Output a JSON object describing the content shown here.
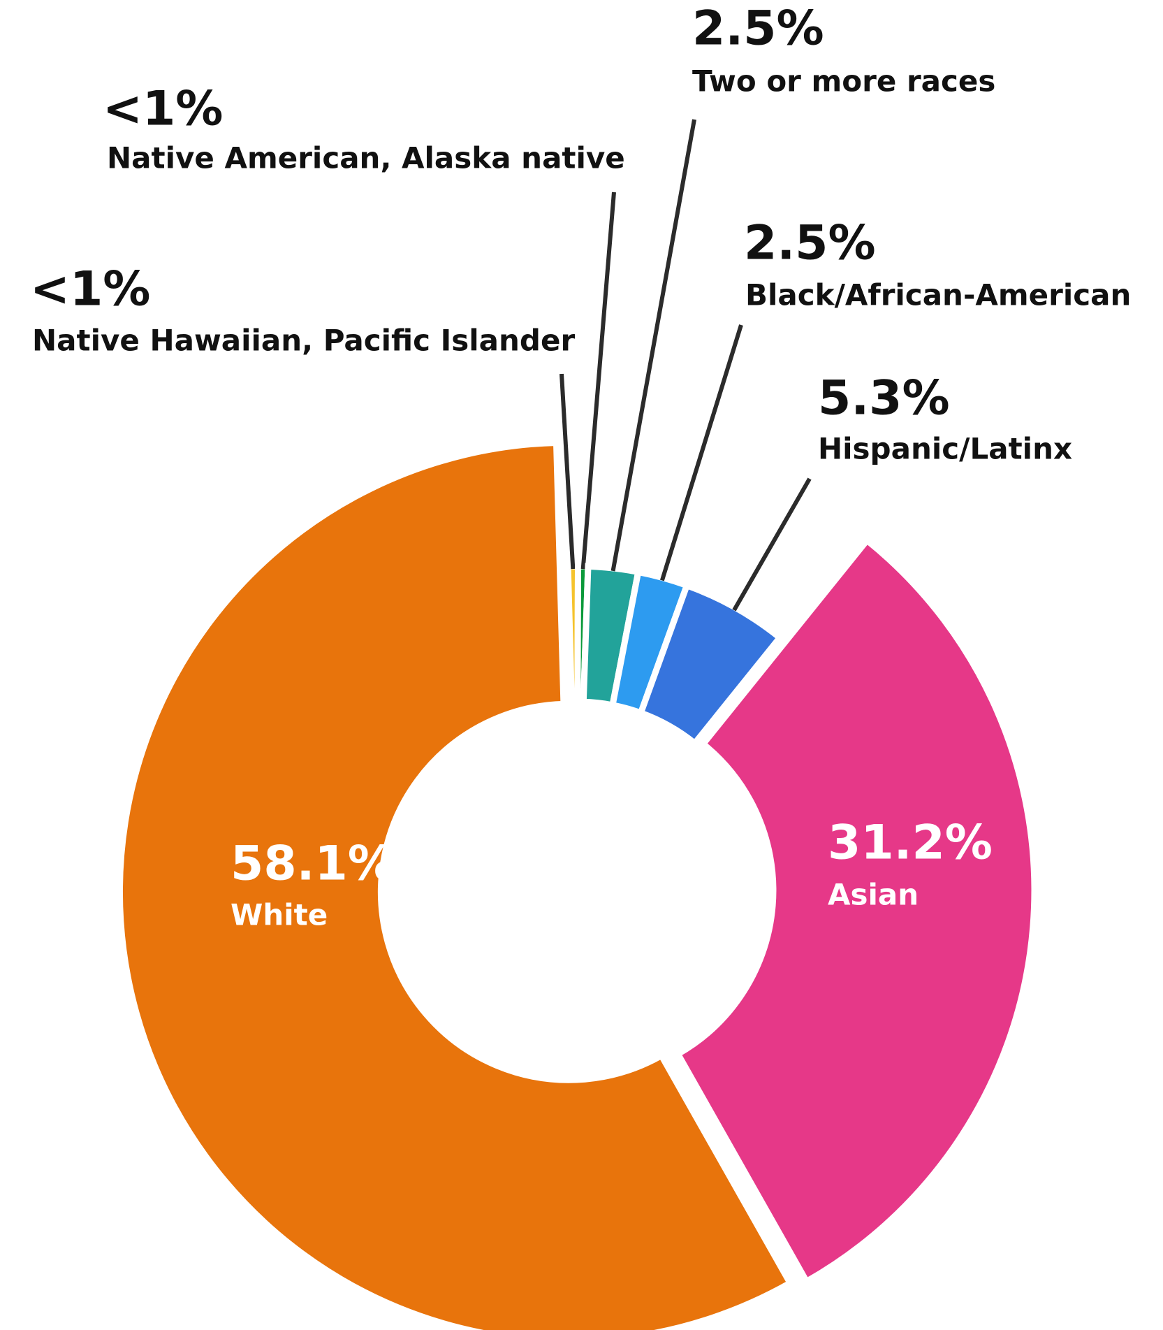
{
  "chart_data": {
    "type": "donut",
    "categories": [
      "Native Hawaiian, Pacific Islander",
      "Native American, Alaska native",
      "Two or more races",
      "Black/African-American",
      "Hispanic/Latinx",
      "Asian",
      "White"
    ],
    "values": [
      0.5,
      0.5,
      2.5,
      2.5,
      5.3,
      31.2,
      58.1
    ],
    "value_labels": [
      "<1%",
      "<1%",
      "2.5%",
      "2.5%",
      "5.3%",
      "31.2%",
      "58.1%"
    ],
    "colors": [
      "#f5c32c",
      "#0b9a3a",
      "#22a39a",
      "#2d9bf0",
      "#3674dd",
      "#e63888",
      "#e8740c"
    ]
  }
}
